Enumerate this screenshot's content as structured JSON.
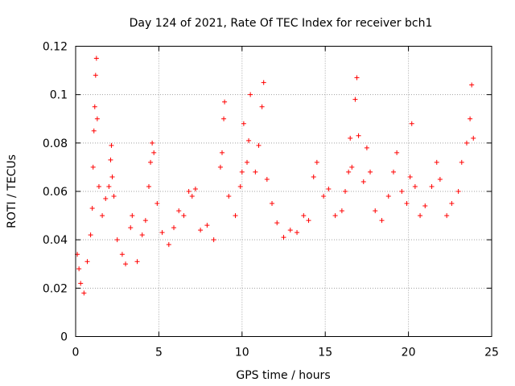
{
  "chart_data": {
    "type": "scatter",
    "title": "Day 124 of 2021, Rate Of TEC Index for receiver bch1",
    "xlabel": "GPS time / hours",
    "ylabel": "ROTI / TECUs",
    "xlim": [
      0,
      25
    ],
    "ylim": [
      0,
      0.12
    ],
    "xticks": [
      "0",
      "5",
      "10",
      "15",
      "20",
      "25"
    ],
    "yticks": [
      "0",
      "0.02",
      "0.04",
      "0.06",
      "0.08",
      "0.1",
      "0.12"
    ],
    "grid": true,
    "marker": "+",
    "color": "#ff0000",
    "series": [
      {
        "points": [
          [
            0.1,
            0.034
          ],
          [
            0.2,
            0.028
          ],
          [
            0.3,
            0.022
          ],
          [
            0.5,
            0.018
          ],
          [
            0.7,
            0.031
          ],
          [
            0.9,
            0.042
          ],
          [
            1.0,
            0.053
          ],
          [
            1.05,
            0.07
          ],
          [
            1.1,
            0.085
          ],
          [
            1.15,
            0.095
          ],
          [
            1.2,
            0.108
          ],
          [
            1.25,
            0.115
          ],
          [
            1.3,
            0.09
          ],
          [
            1.4,
            0.062
          ],
          [
            1.6,
            0.05
          ],
          [
            1.8,
            0.057
          ],
          [
            2.0,
            0.062
          ],
          [
            2.1,
            0.073
          ],
          [
            2.15,
            0.079
          ],
          [
            2.2,
            0.066
          ],
          [
            2.3,
            0.058
          ],
          [
            2.5,
            0.04
          ],
          [
            2.8,
            0.034
          ],
          [
            3.0,
            0.03
          ],
          [
            3.3,
            0.045
          ],
          [
            3.4,
            0.05
          ],
          [
            3.7,
            0.031
          ],
          [
            4.0,
            0.042
          ],
          [
            4.2,
            0.048
          ],
          [
            4.4,
            0.062
          ],
          [
            4.5,
            0.072
          ],
          [
            4.6,
            0.08
          ],
          [
            4.7,
            0.076
          ],
          [
            4.9,
            0.055
          ],
          [
            5.2,
            0.043
          ],
          [
            5.6,
            0.038
          ],
          [
            5.9,
            0.045
          ],
          [
            6.2,
            0.052
          ],
          [
            6.5,
            0.05
          ],
          [
            6.8,
            0.06
          ],
          [
            7.0,
            0.058
          ],
          [
            7.2,
            0.061
          ],
          [
            7.5,
            0.044
          ],
          [
            7.9,
            0.046
          ],
          [
            8.3,
            0.04
          ],
          [
            8.7,
            0.07
          ],
          [
            8.8,
            0.076
          ],
          [
            8.9,
            0.09
          ],
          [
            8.95,
            0.097
          ],
          [
            9.2,
            0.058
          ],
          [
            9.6,
            0.05
          ],
          [
            9.9,
            0.062
          ],
          [
            10.0,
            0.068
          ],
          [
            10.1,
            0.088
          ],
          [
            10.3,
            0.072
          ],
          [
            10.4,
            0.081
          ],
          [
            10.5,
            0.1
          ],
          [
            10.8,
            0.068
          ],
          [
            11.0,
            0.079
          ],
          [
            11.2,
            0.095
          ],
          [
            11.3,
            0.105
          ],
          [
            11.5,
            0.065
          ],
          [
            11.8,
            0.055
          ],
          [
            12.1,
            0.047
          ],
          [
            12.5,
            0.041
          ],
          [
            12.9,
            0.044
          ],
          [
            13.3,
            0.043
          ],
          [
            13.7,
            0.05
          ],
          [
            14.0,
            0.048
          ],
          [
            14.3,
            0.066
          ],
          [
            14.5,
            0.072
          ],
          [
            14.9,
            0.058
          ],
          [
            15.2,
            0.061
          ],
          [
            15.6,
            0.05
          ],
          [
            16.0,
            0.052
          ],
          [
            16.2,
            0.06
          ],
          [
            16.4,
            0.068
          ],
          [
            16.5,
            0.082
          ],
          [
            16.6,
            0.07
          ],
          [
            16.8,
            0.098
          ],
          [
            16.9,
            0.107
          ],
          [
            17.0,
            0.083
          ],
          [
            17.3,
            0.064
          ],
          [
            17.5,
            0.078
          ],
          [
            17.7,
            0.068
          ],
          [
            18.0,
            0.052
          ],
          [
            18.4,
            0.048
          ],
          [
            18.8,
            0.058
          ],
          [
            19.1,
            0.068
          ],
          [
            19.3,
            0.076
          ],
          [
            19.6,
            0.06
          ],
          [
            19.9,
            0.055
          ],
          [
            20.1,
            0.066
          ],
          [
            20.2,
            0.088
          ],
          [
            20.4,
            0.062
          ],
          [
            20.7,
            0.05
          ],
          [
            21.0,
            0.054
          ],
          [
            21.4,
            0.062
          ],
          [
            21.7,
            0.072
          ],
          [
            21.9,
            0.065
          ],
          [
            22.3,
            0.05
          ],
          [
            22.6,
            0.055
          ],
          [
            23.0,
            0.06
          ],
          [
            23.2,
            0.072
          ],
          [
            23.5,
            0.08
          ],
          [
            23.7,
            0.09
          ],
          [
            23.8,
            0.104
          ],
          [
            23.9,
            0.082
          ]
        ]
      }
    ]
  }
}
